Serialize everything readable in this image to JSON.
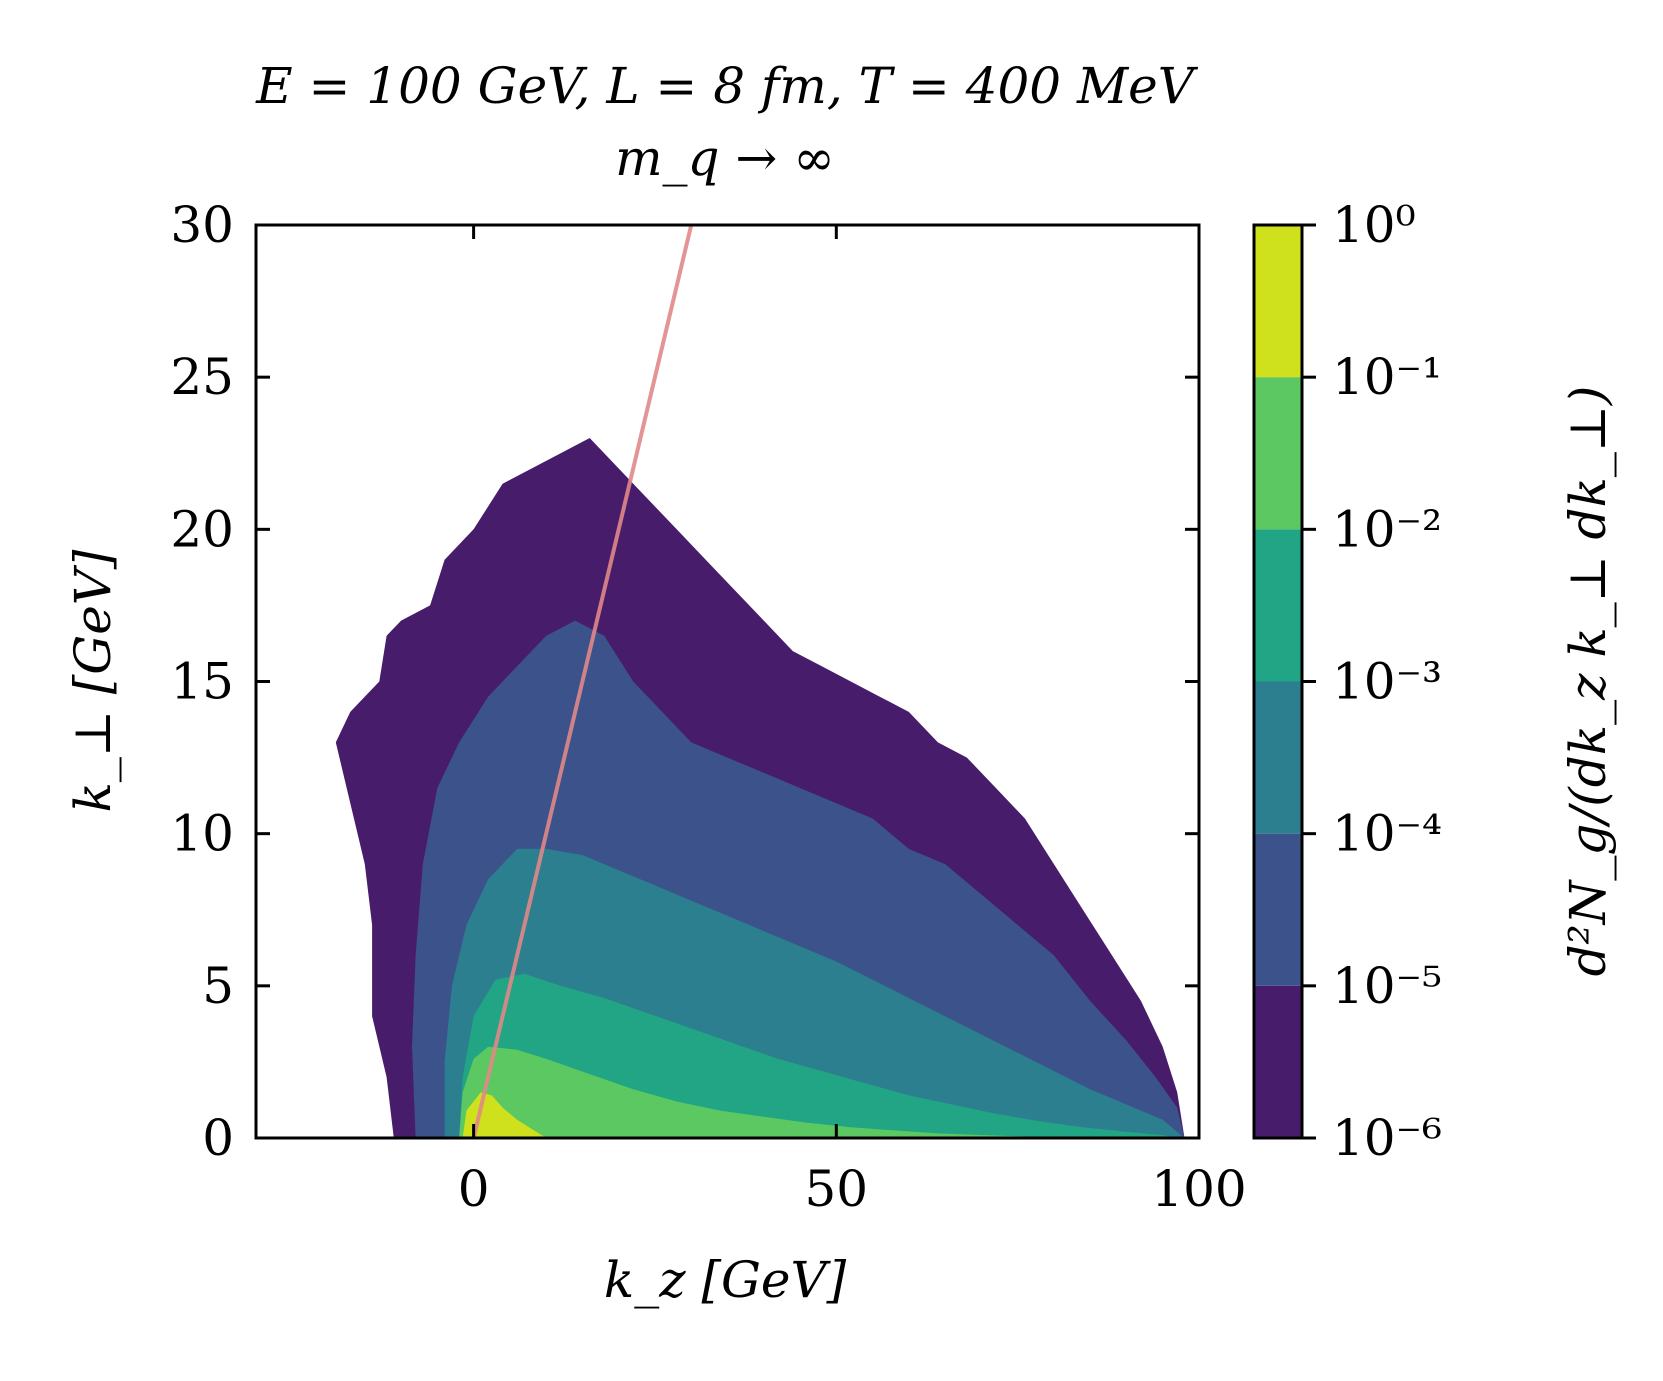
{
  "chart_data": {
    "type": "heatmap",
    "title_line1": "E = 100 GeV,   L = 8 fm,   T = 400 MeV",
    "title_line2": "m_q → ∞",
    "xlabel": "k_z  [GeV]",
    "ylabel": "k_⊥  [GeV]",
    "colorbar_label": "d²N_g/(dk_z k_⊥ dk_⊥)",
    "xlim": [
      -30,
      100
    ],
    "ylim": [
      0,
      30
    ],
    "x_ticks": [
      0,
      50,
      100
    ],
    "x_tick_labels": [
      "0",
      "50",
      "100"
    ],
    "y_ticks": [
      0,
      5,
      10,
      15,
      20,
      25,
      30
    ],
    "y_tick_labels": [
      "0",
      "5",
      "10",
      "15",
      "20",
      "25",
      "30"
    ],
    "colorbar": {
      "scale": "log",
      "levels": [
        1e-06,
        1e-05,
        0.0001,
        0.001,
        0.01,
        0.1,
        1
      ],
      "tick_labels": [
        "10⁻⁶",
        "10⁻⁵",
        "10⁻⁴",
        "10⁻³",
        "10⁻²",
        "10⁻¹",
        "10⁰"
      ],
      "colors": [
        "#471c6b",
        "#3b528b",
        "#2c7f8e",
        "#21a585",
        "#5bc862",
        "#fde725",
        "#cfe11d"
      ]
    },
    "contour_regions": [
      {
        "level": "1e-6 to 1e-5",
        "color": "#471c6b",
        "outline": [
          [
            -11,
            0
          ],
          [
            -12,
            2
          ],
          [
            -14,
            4
          ],
          [
            -14,
            7
          ],
          [
            -15,
            9
          ],
          [
            -17,
            11
          ],
          [
            -19,
            13
          ],
          [
            -17,
            14
          ],
          [
            -13,
            15
          ],
          [
            -12,
            16.5
          ],
          [
            -10,
            17
          ],
          [
            -6,
            17.5
          ],
          [
            -4,
            19
          ],
          [
            0,
            20
          ],
          [
            4,
            21.5
          ],
          [
            8,
            22
          ],
          [
            12,
            22.5
          ],
          [
            16,
            23
          ],
          [
            20,
            22
          ],
          [
            24,
            21
          ],
          [
            28,
            20
          ],
          [
            32,
            19
          ],
          [
            36,
            18
          ],
          [
            40,
            17
          ],
          [
            44,
            16
          ],
          [
            48,
            15.5
          ],
          [
            52,
            15
          ],
          [
            56,
            14.5
          ],
          [
            60,
            14
          ],
          [
            64,
            13
          ],
          [
            68,
            12.5
          ],
          [
            72,
            11.5
          ],
          [
            76,
            10.5
          ],
          [
            80,
            9
          ],
          [
            84,
            7.5
          ],
          [
            88,
            6
          ],
          [
            92,
            4.5
          ],
          [
            95,
            3
          ],
          [
            97,
            1.5
          ],
          [
            98,
            0
          ]
        ]
      },
      {
        "level": "1e-5 to 1e-4",
        "color": "#3b528b",
        "outline": [
          [
            -8,
            0
          ],
          [
            -8.5,
            3
          ],
          [
            -8,
            6
          ],
          [
            -7,
            9
          ],
          [
            -5,
            11.5
          ],
          [
            -2,
            13
          ],
          [
            2,
            14.5
          ],
          [
            6,
            15.5
          ],
          [
            10,
            16.5
          ],
          [
            14,
            17
          ],
          [
            18,
            16.5
          ],
          [
            22,
            15
          ],
          [
            26,
            14
          ],
          [
            30,
            13
          ],
          [
            35,
            12.5
          ],
          [
            40,
            12
          ],
          [
            45,
            11.5
          ],
          [
            50,
            11
          ],
          [
            55,
            10.5
          ],
          [
            60,
            9.5
          ],
          [
            65,
            9
          ],
          [
            70,
            8
          ],
          [
            75,
            7
          ],
          [
            80,
            6
          ],
          [
            85,
            4.5
          ],
          [
            90,
            3.2
          ],
          [
            94,
            2
          ],
          [
            97,
            1
          ],
          [
            98,
            0
          ]
        ]
      },
      {
        "level": "1e-4 to 1e-3",
        "color": "#2c7f8e",
        "outline": [
          [
            -4,
            0
          ],
          [
            -4,
            2.5
          ],
          [
            -3,
            5
          ],
          [
            -1,
            7
          ],
          [
            2,
            8.5
          ],
          [
            6,
            9.5
          ],
          [
            10,
            9.5
          ],
          [
            15,
            9.3
          ],
          [
            20,
            8.8
          ],
          [
            25,
            8.3
          ],
          [
            30,
            7.8
          ],
          [
            35,
            7.3
          ],
          [
            40,
            6.8
          ],
          [
            45,
            6.3
          ],
          [
            50,
            5.8
          ],
          [
            55,
            5.2
          ],
          [
            60,
            4.6
          ],
          [
            65,
            4
          ],
          [
            70,
            3.4
          ],
          [
            75,
            2.8
          ],
          [
            80,
            2.2
          ],
          [
            85,
            1.6
          ],
          [
            90,
            1.1
          ],
          [
            95,
            0.6
          ],
          [
            98,
            0
          ]
        ]
      },
      {
        "level": "1e-3 to 1e-2",
        "color": "#21a585",
        "outline": [
          [
            -2,
            0
          ],
          [
            -1.5,
            2
          ],
          [
            0,
            4
          ],
          [
            3,
            5.2
          ],
          [
            7,
            5.4
          ],
          [
            12,
            5
          ],
          [
            18,
            4.6
          ],
          [
            24,
            4.1
          ],
          [
            30,
            3.6
          ],
          [
            36,
            3.1
          ],
          [
            42,
            2.6
          ],
          [
            48,
            2.2
          ],
          [
            54,
            1.8
          ],
          [
            60,
            1.4
          ],
          [
            66,
            1.1
          ],
          [
            72,
            0.8
          ],
          [
            78,
            0.55
          ],
          [
            84,
            0.35
          ],
          [
            90,
            0.2
          ],
          [
            95,
            0.1
          ],
          [
            97,
            0
          ]
        ]
      },
      {
        "level": "1e-2 to 1e-1",
        "color": "#5bc862",
        "outline": [
          [
            -2,
            0
          ],
          [
            -1.5,
            1.5
          ],
          [
            0,
            2.6
          ],
          [
            2,
            3
          ],
          [
            6,
            2.9
          ],
          [
            10,
            2.6
          ],
          [
            16,
            2.1
          ],
          [
            22,
            1.6
          ],
          [
            28,
            1.2
          ],
          [
            34,
            0.9
          ],
          [
            40,
            0.7
          ],
          [
            46,
            0.5
          ],
          [
            52,
            0.35
          ],
          [
            58,
            0.25
          ],
          [
            64,
            0.15
          ],
          [
            70,
            0.1
          ],
          [
            76,
            0.05
          ],
          [
            80,
            0
          ]
        ]
      },
      {
        "level": "1e-1 to 1",
        "color": "#cfe11d",
        "outline": [
          [
            -1.5,
            0
          ],
          [
            -1,
            0.9
          ],
          [
            1,
            1.5
          ],
          [
            2.5,
            1.4
          ],
          [
            4,
            1
          ],
          [
            6,
            0.6
          ],
          [
            8,
            0.3
          ],
          [
            10,
            0
          ]
        ]
      }
    ],
    "guide_line": {
      "color": "#e08888",
      "points": [
        [
          0,
          0
        ],
        [
          30,
          30
        ]
      ]
    }
  }
}
